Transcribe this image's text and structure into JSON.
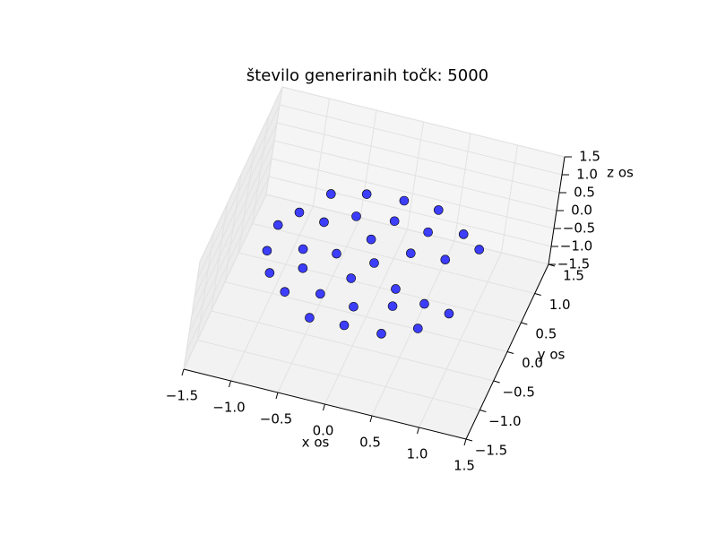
{
  "chart_data": {
    "type": "scatter3d",
    "title": "število generiranih točk: 5000",
    "xlabel": "x os",
    "ylabel": "y os",
    "zlabel": "z os",
    "color": "#0000ff",
    "x": [
      0.95,
      0.71,
      0.38,
      0,
      -0.38,
      -0.71,
      -0.95,
      -1.08,
      -1.08,
      -0.95,
      -0.71,
      -0.38,
      0,
      0.38,
      0.71,
      0.95,
      0.65,
      0.38,
      0,
      -0.38,
      -0.65,
      -0.75,
      -0.65,
      -0.38,
      0,
      0.38,
      0.65,
      0.31,
      -0.14,
      -0.4,
      -0.14,
      0.31,
      0
    ],
    "y": [
      0.55,
      0.84,
      1.03,
      1.1,
      1.03,
      0.84,
      0.55,
      0.19,
      -0.19,
      -0.55,
      -0.84,
      -1.03,
      -1.1,
      -1.03,
      -0.84,
      -0.55,
      0.38,
      0.65,
      0.75,
      0.65,
      0.38,
      0,
      -0.38,
      -0.65,
      -0.75,
      -0.65,
      -0.38,
      0.26,
      0.38,
      0,
      -0.38,
      -0.26,
      0
    ],
    "z": [
      0.1,
      -0.1,
      0.05,
      -0.05,
      0,
      0.1,
      -0.1,
      0.05,
      -0.05,
      0,
      0.1,
      -0.1,
      0.05,
      -0.05,
      0,
      0.1,
      -0.1,
      0.05,
      -0.05,
      0,
      0.1,
      -0.1,
      0.05,
      -0.05,
      0,
      0.1,
      -0.1,
      0.05,
      -0.05,
      0,
      0.1,
      -0.1,
      0
    ],
    "xlim": [
      -1.5,
      1.5
    ],
    "ylim": [
      -1.5,
      1.5
    ],
    "zlim": [
      -1.5,
      1.5
    ],
    "xticks": [
      {
        "value": -1.5,
        "label": "−1.5"
      },
      {
        "value": -1,
        "label": "−1.0"
      },
      {
        "value": -0.5,
        "label": "−0.5"
      },
      {
        "value": 0,
        "label": "0.0"
      },
      {
        "value": 0.5,
        "label": "0.5"
      },
      {
        "value": 1,
        "label": "1.0"
      },
      {
        "value": 1.5,
        "label": "1.5"
      }
    ],
    "yticks": [
      {
        "value": -1.5,
        "label": "−1.5"
      },
      {
        "value": -1,
        "label": "−1.0"
      },
      {
        "value": -0.5,
        "label": "−0.5"
      },
      {
        "value": 0,
        "label": "0.0"
      },
      {
        "value": 0.5,
        "label": "0.5"
      },
      {
        "value": 1,
        "label": "1.0"
      },
      {
        "value": 1.5,
        "label": "1.5"
      }
    ],
    "zticks": [
      {
        "value": -1.5,
        "label": "−1.5"
      },
      {
        "value": -1,
        "label": "−1.0"
      },
      {
        "value": -0.5,
        "label": "−0.5"
      },
      {
        "value": 0,
        "label": "0.0"
      },
      {
        "value": 0.5,
        "label": "0.5"
      },
      {
        "value": 1,
        "label": "1.0"
      },
      {
        "value": 1.5,
        "label": "1.5"
      }
    ],
    "grid": true
  }
}
